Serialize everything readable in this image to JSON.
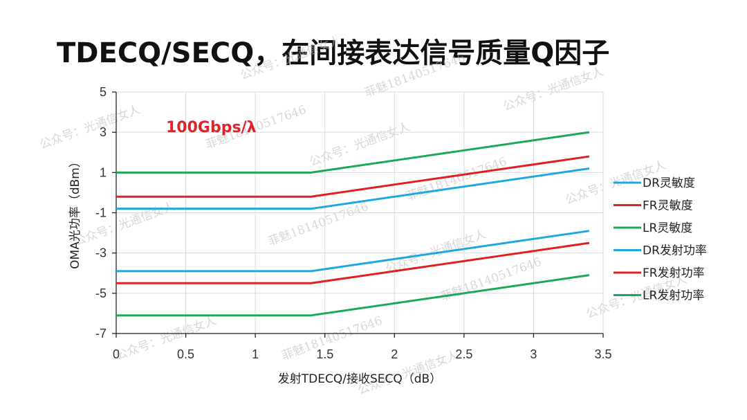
{
  "page": {
    "title": "TDECQ/SECQ，在间接表达信号质量Q因子",
    "watermarks": [
      "公众号：光通信女人",
      "菲魅18140517646"
    ]
  },
  "chart_data": {
    "type": "line",
    "title": "TDECQ/SECQ，在间接表达信号质量Q因子",
    "annotation": "100Gbps/λ",
    "annotation_color": "#d9262c",
    "xlabel": "发射TDECQ/接收SECQ（dB）",
    "ylabel": "OMA光功率（dBm）",
    "xlim": [
      0,
      3.5
    ],
    "ylim": [
      -7,
      5
    ],
    "xticks": [
      0,
      0.5,
      1,
      1.5,
      2,
      2.5,
      3,
      3.5
    ],
    "xtick_labels": [
      "0",
      "0.5",
      "1",
      "1.5",
      "2",
      "2.5",
      "3",
      "3.5"
    ],
    "yticks": [
      -7,
      -5,
      -3,
      -1,
      1,
      3,
      5
    ],
    "ytick_labels": [
      "-7",
      "-5",
      "-3",
      "-1",
      "1",
      "3",
      "5"
    ],
    "grid": true,
    "legend_position": "right",
    "series": [
      {
        "name": "DR灵敏度",
        "color": "#1fa8df",
        "x": [
          0,
          1.4,
          3.4
        ],
        "y": [
          -0.8,
          -0.8,
          1.2
        ]
      },
      {
        "name": "FR灵敏度",
        "color": "#e02020",
        "x": [
          0,
          1.4,
          3.4
        ],
        "y": [
          -0.2,
          -0.2,
          1.8
        ]
      },
      {
        "name": "LR灵敏度",
        "color": "#1aaa55",
        "x": [
          0,
          1.4,
          3.4
        ],
        "y": [
          1.0,
          1.0,
          3.0
        ]
      },
      {
        "name": "DR发射功率",
        "color": "#1fa8df",
        "x": [
          0,
          1.4,
          3.4
        ],
        "y": [
          -3.9,
          -3.9,
          -1.9
        ]
      },
      {
        "name": "FR发射功率",
        "color": "#e02020",
        "x": [
          0,
          1.4,
          3.4
        ],
        "y": [
          -4.5,
          -4.5,
          -2.5
        ]
      },
      {
        "name": "LR发射功率",
        "color": "#1aaa55",
        "x": [
          0,
          1.4,
          3.4
        ],
        "y": [
          -6.1,
          -6.1,
          -4.1
        ]
      }
    ]
  }
}
